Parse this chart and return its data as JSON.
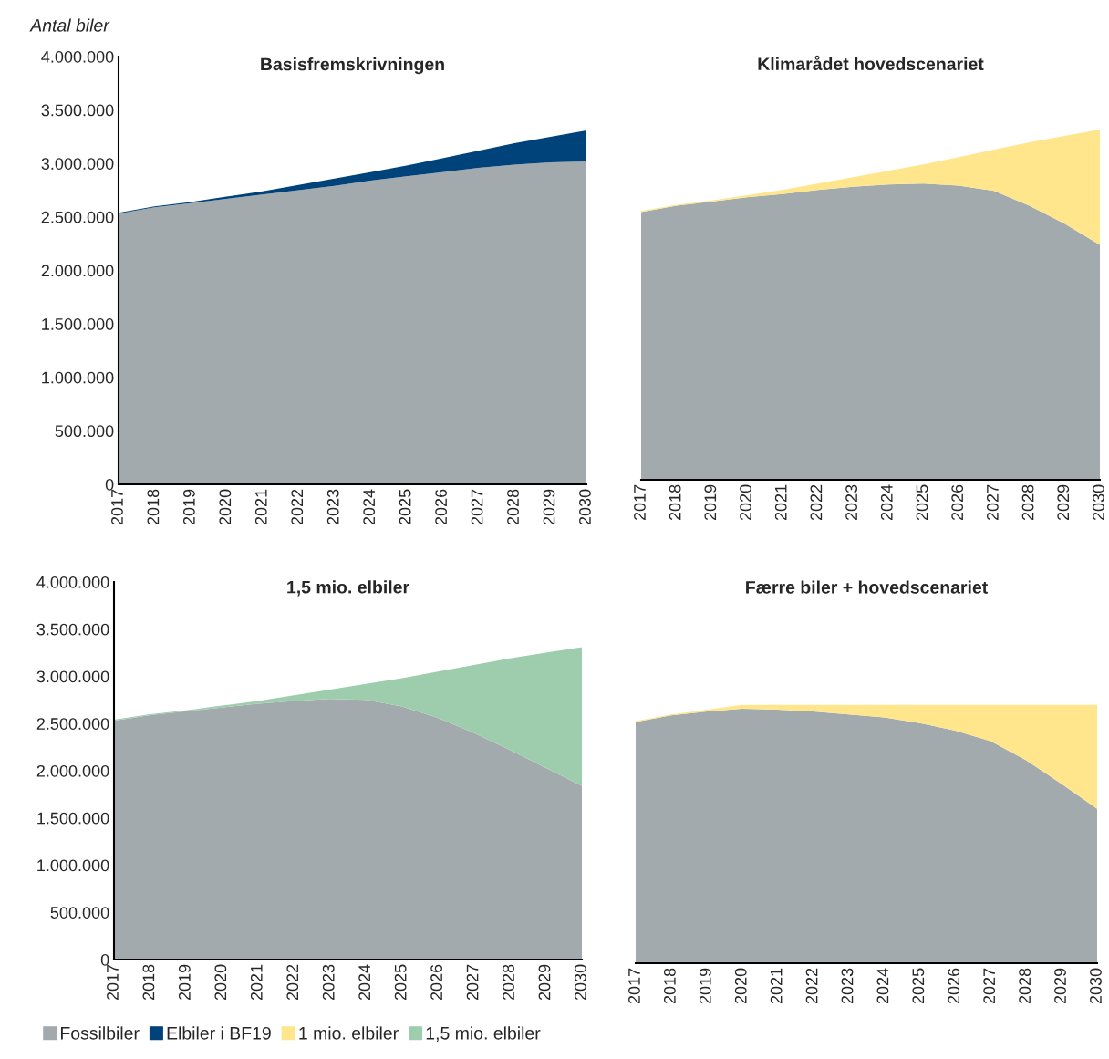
{
  "chart_data": [
    {
      "type": "area",
      "stacked": true,
      "title": "Basisfremskrivningen",
      "ylabel": "Antal biler",
      "legend": "bottom",
      "grid": false,
      "categories": [
        "2017",
        "2018",
        "2019",
        "2020",
        "2021",
        "2022",
        "2023",
        "2024",
        "2025",
        "2026",
        "2027",
        "2028",
        "2029",
        "2030"
      ],
      "ylim": [
        0,
        4000000
      ],
      "yticks": [
        {
          "value": 0,
          "label": "0"
        },
        {
          "value": 500000,
          "label": "500.000"
        },
        {
          "value": 1000000,
          "label": "1.000.000"
        },
        {
          "value": 1500000,
          "label": "1.500.000"
        },
        {
          "value": 2000000,
          "label": "2.000.000"
        },
        {
          "value": 2500000,
          "label": "2.500.000"
        },
        {
          "value": 3000000,
          "label": "3.000.000"
        },
        {
          "value": 3500000,
          "label": "3.500.000"
        },
        {
          "value": 4000000,
          "label": "4.000.000"
        }
      ],
      "series": [
        {
          "name": "Fossilbiler",
          "color": "#a2aaad",
          "values": [
            2530000,
            2590000,
            2630000,
            2670000,
            2710000,
            2750000,
            2790000,
            2840000,
            2880000,
            2920000,
            2960000,
            2990000,
            3010000,
            3020000
          ]
        },
        {
          "name": "Elbiler i BF19",
          "color": "#00427a",
          "values": [
            10000,
            10000,
            10000,
            20000,
            30000,
            50000,
            70000,
            80000,
            100000,
            130000,
            160000,
            200000,
            240000,
            290000
          ]
        }
      ]
    },
    {
      "type": "area",
      "stacked": true,
      "title": "Klimarådet hovedscenariet",
      "legend": "bottom",
      "grid": false,
      "tick_labels": "x",
      "categories": [
        "2017",
        "2018",
        "2019",
        "2020",
        "2021",
        "2022",
        "2023",
        "2024",
        "2025",
        "2026",
        "2027",
        "2028",
        "2029",
        "2030"
      ],
      "ylim": [
        0,
        4000000
      ],
      "series": [
        {
          "name": "Fossilbiler",
          "color": "#a2aaad",
          "values": [
            2530000,
            2590000,
            2630000,
            2670000,
            2700000,
            2740000,
            2770000,
            2790000,
            2800000,
            2780000,
            2730000,
            2590000,
            2420000,
            2220000
          ]
        },
        {
          "name": "1 mio. elbiler",
          "color": "#ffe68c",
          "values": [
            10000,
            10000,
            10000,
            20000,
            40000,
            60000,
            90000,
            130000,
            180000,
            270000,
            390000,
            600000,
            830000,
            1090000
          ]
        }
      ]
    },
    {
      "type": "area",
      "stacked": true,
      "title": "1,5 mio. elbiler",
      "legend": "bottom",
      "grid": false,
      "categories": [
        "2017",
        "2018",
        "2019",
        "2020",
        "2021",
        "2022",
        "2023",
        "2024",
        "2025",
        "2026",
        "2027",
        "2028",
        "2029",
        "2030"
      ],
      "ylim": [
        0,
        4000000
      ],
      "yticks": [
        {
          "value": 0,
          "label": "0"
        },
        {
          "value": 500000,
          "label": "500.000"
        },
        {
          "value": 1000000,
          "label": "1.000.000"
        },
        {
          "value": 1500000,
          "label": "1.500.000"
        },
        {
          "value": 2000000,
          "label": "2.000.000"
        },
        {
          "value": 2500000,
          "label": "2.500.000"
        },
        {
          "value": 3000000,
          "label": "3.000.000"
        },
        {
          "value": 3500000,
          "label": "3.500.000"
        },
        {
          "value": 4000000,
          "label": "4.000.000"
        }
      ],
      "series": [
        {
          "name": "Fossilbiler",
          "color": "#a2aaad",
          "values": [
            2530000,
            2590000,
            2630000,
            2670000,
            2710000,
            2740000,
            2760000,
            2750000,
            2680000,
            2560000,
            2400000,
            2220000,
            2030000,
            1840000
          ]
        },
        {
          "name": "1,5 mio. elbiler",
          "color": "#9ecdad",
          "values": [
            10000,
            10000,
            10000,
            20000,
            30000,
            60000,
            100000,
            170000,
            300000,
            490000,
            720000,
            970000,
            1220000,
            1470000
          ]
        }
      ]
    },
    {
      "type": "area",
      "stacked": true,
      "title": "Færre biler + hovedscenariet",
      "legend": "bottom",
      "grid": false,
      "tick_labels": "x",
      "categories": [
        "2017",
        "2018",
        "2019",
        "2020",
        "2021",
        "2022",
        "2023",
        "2024",
        "2025",
        "2026",
        "2027",
        "2028",
        "2029",
        "2030"
      ],
      "ylim": [
        0,
        4000000
      ],
      "series": [
        {
          "name": "Fossilbiler",
          "color": "#a2aaad",
          "values": [
            2530000,
            2600000,
            2640000,
            2670000,
            2660000,
            2640000,
            2610000,
            2580000,
            2520000,
            2440000,
            2330000,
            2130000,
            1880000,
            1620000
          ]
        },
        {
          "name": "1 mio. elbiler",
          "color": "#ffe68c",
          "values": [
            10000,
            10000,
            20000,
            40000,
            50000,
            70000,
            100000,
            130000,
            190000,
            270000,
            380000,
            580000,
            830000,
            1090000
          ]
        }
      ]
    }
  ]
}
